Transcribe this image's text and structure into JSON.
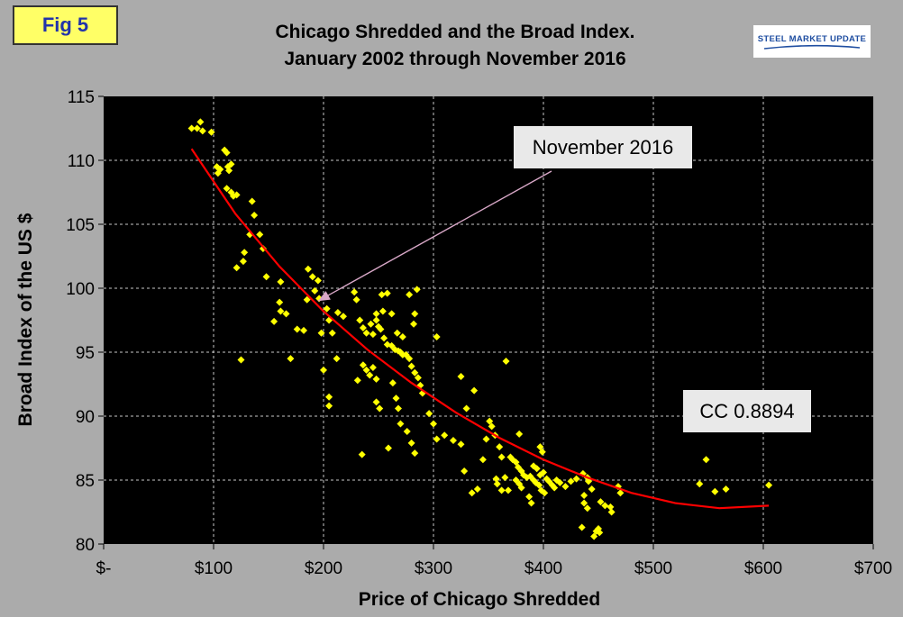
{
  "badge": {
    "label": "Fig 5"
  },
  "logo": {
    "text": "STEEL MARKET UPDATE",
    "color": "#1f4ea1"
  },
  "colors": {
    "background": "#ababab",
    "plot": "#000000",
    "points": "#ffff00",
    "trend": "#ff0000",
    "pointer": "#d9a8c8"
  },
  "chart_data": {
    "type": "scatter",
    "title": "Chicago Shredded and the Broad Index.",
    "subtitle": "January 2002 through November 2016",
    "xlabel": "Price of Chicago Shredded",
    "ylabel": "Broad Index of the US $",
    "xlim": [
      0,
      700
    ],
    "ylim": [
      80,
      115
    ],
    "x_ticks": [
      0,
      100,
      200,
      300,
      400,
      500,
      600,
      700
    ],
    "x_tick_labels": [
      "$-",
      "$100",
      "$200",
      "$300",
      "$400",
      "$500",
      "$600",
      "$700"
    ],
    "y_ticks": [
      80,
      85,
      90,
      95,
      100,
      105,
      110,
      115
    ],
    "y_tick_labels": [
      "80",
      "85",
      "90",
      "95",
      "100",
      "105",
      "110",
      "115"
    ],
    "grid": true,
    "annotations": [
      {
        "text": "November 2016",
        "points_to": [
          195,
          99
        ]
      },
      {
        "text": "CC 0.8894"
      }
    ],
    "trendline": {
      "type": "polynomial",
      "x": [
        80,
        120,
        160,
        200,
        240,
        280,
        320,
        360,
        400,
        440,
        480,
        520,
        560,
        605
      ],
      "y": [
        110.9,
        105.8,
        101.7,
        98.2,
        95.2,
        92.6,
        90.3,
        88.3,
        86.6,
        85.2,
        84.0,
        83.2,
        82.8,
        83.0
      ]
    },
    "points": [
      [
        80,
        112.5
      ],
      [
        85,
        112.5
      ],
      [
        88,
        113.0
      ],
      [
        90,
        112.3
      ],
      [
        98,
        112.2
      ],
      [
        103,
        109.5
      ],
      [
        104,
        109.0
      ],
      [
        106,
        109.3
      ],
      [
        110,
        110.8
      ],
      [
        112,
        110.6
      ],
      [
        113,
        109.5
      ],
      [
        116,
        109.7
      ],
      [
        114,
        109.2
      ],
      [
        118,
        107.2
      ],
      [
        112,
        107.8
      ],
      [
        116,
        107.5
      ],
      [
        121,
        107.3
      ],
      [
        135,
        106.8
      ],
      [
        137,
        105.7
      ],
      [
        142,
        104.2
      ],
      [
        133,
        104.2
      ],
      [
        145,
        103.1
      ],
      [
        128,
        102.8
      ],
      [
        127,
        102.1
      ],
      [
        121,
        101.6
      ],
      [
        148,
        100.9
      ],
      [
        161,
        100.5
      ],
      [
        160,
        98.9
      ],
      [
        161,
        98.2
      ],
      [
        166,
        98.0
      ],
      [
        155,
        97.4
      ],
      [
        176,
        96.8
      ],
      [
        182,
        96.7
      ],
      [
        170,
        94.5
      ],
      [
        125,
        94.4
      ],
      [
        186,
        101.5
      ],
      [
        190,
        100.9
      ],
      [
        195,
        100.6
      ],
      [
        192,
        99.8
      ],
      [
        196,
        99.2
      ],
      [
        185,
        99.1
      ],
      [
        203,
        98.4
      ],
      [
        205,
        97.5
      ],
      [
        208,
        96.5
      ],
      [
        198,
        96.5
      ],
      [
        213,
        98.1
      ],
      [
        218,
        97.8
      ],
      [
        212,
        94.5
      ],
      [
        200,
        93.6
      ],
      [
        205,
        91.5
      ],
      [
        205,
        90.8
      ],
      [
        228,
        99.7
      ],
      [
        230,
        99.1
      ],
      [
        233,
        97.5
      ],
      [
        236,
        96.9
      ],
      [
        239,
        96.5
      ],
      [
        243,
        97.2
      ],
      [
        245,
        96.4
      ],
      [
        248,
        97.5
      ],
      [
        248,
        98.0
      ],
      [
        254,
        98.2
      ],
      [
        250,
        97.0
      ],
      [
        252,
        96.8
      ],
      [
        255,
        96.1
      ],
      [
        258,
        95.6
      ],
      [
        262,
        95.5
      ],
      [
        265,
        95.2
      ],
      [
        268,
        95.1
      ],
      [
        270,
        95.0
      ],
      [
        272,
        94.8
      ],
      [
        275,
        94.8
      ],
      [
        278,
        94.5
      ],
      [
        280,
        93.9
      ],
      [
        283,
        93.4
      ],
      [
        286,
        93.0
      ],
      [
        288,
        92.4
      ],
      [
        290,
        91.8
      ],
      [
        253,
        99.5
      ],
      [
        258,
        99.6
      ],
      [
        262,
        98.0
      ],
      [
        267,
        96.5
      ],
      [
        272,
        96.2
      ],
      [
        236,
        94.0
      ],
      [
        239,
        93.6
      ],
      [
        242,
        93.2
      ],
      [
        231,
        92.8
      ],
      [
        245,
        93.8
      ],
      [
        248,
        92.9
      ],
      [
        263,
        92.6
      ],
      [
        266,
        91.4
      ],
      [
        268,
        90.6
      ],
      [
        270,
        89.4
      ],
      [
        276,
        88.8
      ],
      [
        280,
        87.9
      ],
      [
        283,
        87.1
      ],
      [
        259,
        87.5
      ],
      [
        235,
        87.0
      ],
      [
        248,
        91.1
      ],
      [
        251,
        90.6
      ],
      [
        278,
        99.5
      ],
      [
        283,
        98.0
      ],
      [
        285,
        99.9
      ],
      [
        282,
        97.2
      ],
      [
        303,
        96.2
      ],
      [
        296,
        90.2
      ],
      [
        300,
        89.4
      ],
      [
        303,
        88.2
      ],
      [
        310,
        88.5
      ],
      [
        318,
        88.1
      ],
      [
        325,
        87.8
      ],
      [
        325,
        93.1
      ],
      [
        330,
        90.6
      ],
      [
        337,
        92.0
      ],
      [
        328,
        85.7
      ],
      [
        335,
        84.0
      ],
      [
        340,
        84.3
      ],
      [
        345,
        86.6
      ],
      [
        348,
        88.2
      ],
      [
        351,
        89.6
      ],
      [
        353,
        89.2
      ],
      [
        356,
        88.5
      ],
      [
        360,
        87.6
      ],
      [
        362,
        86.8
      ],
      [
        357,
        85.1
      ],
      [
        358,
        84.7
      ],
      [
        362,
        84.2
      ],
      [
        366,
        94.3
      ],
      [
        370,
        86.8
      ],
      [
        372,
        86.6
      ],
      [
        375,
        86.4
      ],
      [
        377,
        86.0
      ],
      [
        380,
        85.7
      ],
      [
        382,
        85.4
      ],
      [
        385,
        85.2
      ],
      [
        375,
        85.0
      ],
      [
        378,
        84.7
      ],
      [
        380,
        84.4
      ],
      [
        368,
        84.2
      ],
      [
        365,
        85.2
      ],
      [
        388,
        85.3
      ],
      [
        391,
        85.0
      ],
      [
        393,
        84.8
      ],
      [
        397,
        85.4
      ],
      [
        400,
        85.6
      ],
      [
        403,
        85.1
      ],
      [
        405,
        84.9
      ],
      [
        408,
        84.6
      ],
      [
        410,
        84.4
      ],
      [
        412,
        85.0
      ],
      [
        415,
        84.8
      ],
      [
        397,
        87.6
      ],
      [
        399,
        87.2
      ],
      [
        391,
        86.1
      ],
      [
        394,
        85.9
      ],
      [
        387,
        83.7
      ],
      [
        389,
        83.2
      ],
      [
        398,
        84.2
      ],
      [
        401,
        84.0
      ],
      [
        420,
        84.5
      ],
      [
        425,
        84.9
      ],
      [
        430,
        85.1
      ],
      [
        436,
        85.5
      ],
      [
        440,
        85.2
      ],
      [
        441,
        84.9
      ],
      [
        444,
        84.3
      ],
      [
        437,
        83.8
      ],
      [
        437,
        83.2
      ],
      [
        440,
        82.8
      ],
      [
        435,
        81.3
      ],
      [
        448,
        81.0
      ],
      [
        450,
        81.2
      ],
      [
        452,
        83.3
      ],
      [
        456,
        83.0
      ],
      [
        461,
        82.9
      ],
      [
        462,
        82.5
      ],
      [
        446,
        80.6
      ],
      [
        451,
        80.9
      ],
      [
        468,
        84.5
      ],
      [
        470,
        84.0
      ],
      [
        542,
        84.7
      ],
      [
        548,
        86.6
      ],
      [
        556,
        84.1
      ],
      [
        566,
        84.3
      ],
      [
        605,
        84.6
      ],
      [
        378,
        88.6
      ],
      [
        396,
        84.6
      ]
    ]
  }
}
